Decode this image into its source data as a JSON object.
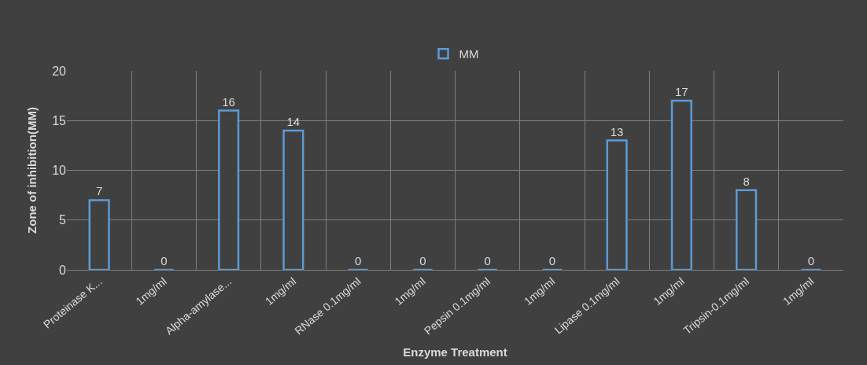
{
  "chart_data": {
    "type": "bar",
    "xlabel": "Enzyme Treatment",
    "ylabel": "Zone of inhibition(MM)",
    "categories": [
      "Proteinase K...",
      "1mg/ml",
      "Alpha-amylase...",
      "1mg/ml",
      "RNase 0.1mg/ml",
      "1mg/ml",
      "Pepsin 0.1mg/ml",
      "1mg/ml",
      "Lipase 0.1mg/ml",
      "1mg/ml",
      "Tripsin-0.1mg/ml",
      "1mg/ml"
    ],
    "series": [
      {
        "name": "MM",
        "color": "#5b9bd5",
        "values": [
          7,
          0,
          16,
          14,
          0,
          0,
          0,
          0,
          13,
          17,
          8,
          0
        ]
      }
    ],
    "ylim": [
      0,
      20
    ],
    "yticks": [
      0,
      5,
      10,
      15,
      20
    ],
    "grid": true,
    "legend": "top",
    "data_labels": true
  }
}
